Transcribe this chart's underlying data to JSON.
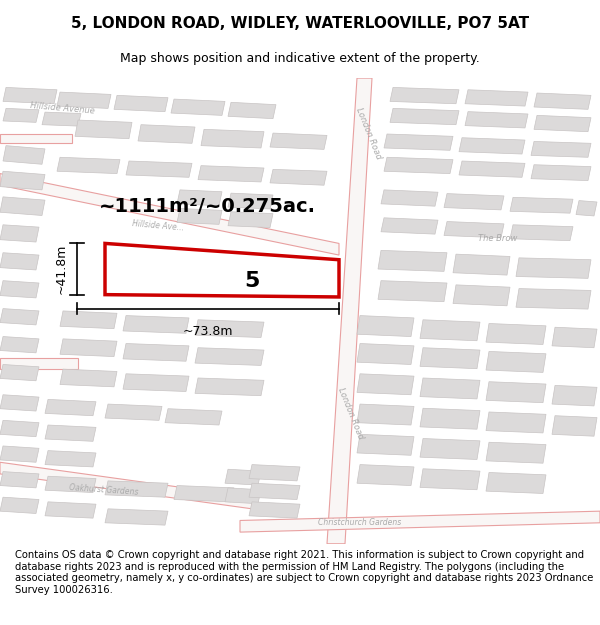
{
  "title": "5, LONDON ROAD, WIDLEY, WATERLOOVILLE, PO7 5AT",
  "subtitle": "Map shows position and indicative extent of the property.",
  "footer": "Contains OS data © Crown copyright and database right 2021. This information is subject to Crown copyright and database rights 2023 and is reproduced with the permission of HM Land Registry. The polygons (including the associated geometry, namely x, y co-ordinates) are subject to Crown copyright and database rights 2023 Ordnance Survey 100026316.",
  "area_label": "~1111m²/~0.275ac.",
  "width_label": "~73.8m",
  "height_label": "~41.8m",
  "plot_number": "5",
  "map_bg": "#f9f6f5",
  "road_line_color": "#e8a0a0",
  "building_fill": "#dcdada",
  "building_edge": "#c8c4c4",
  "highlight_color": "#cc0000",
  "label_color": "#aaaaaa",
  "title_bg": "#ffffff",
  "footer_bg": "#ffffff",
  "dim_line_color": "#000000",
  "title_fontsize": 11,
  "subtitle_fontsize": 9,
  "footer_fontsize": 7.2
}
